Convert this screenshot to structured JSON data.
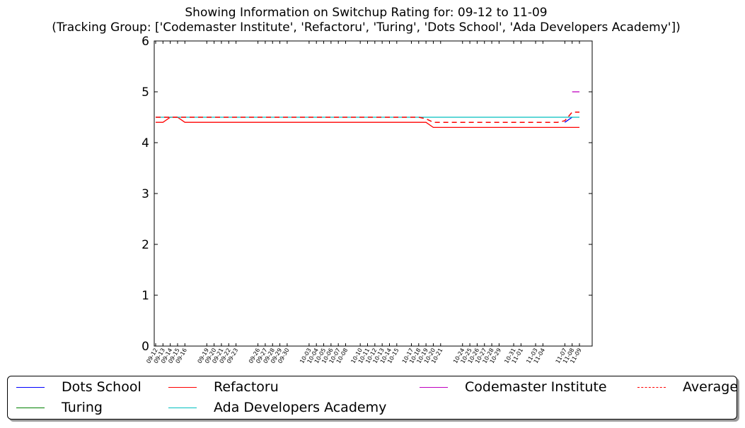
{
  "title": {
    "line1": "Showing Information on Switchup Rating for: 09-12 to 11-09",
    "line2": "(Tracking Group: ['Codemaster Institute', 'Refactoru', 'Turing', 'Dots School', 'Ada Developers Academy'])"
  },
  "chart_data": {
    "type": "line",
    "title": "Showing Information on Switchup Rating for: 09-12 to 11-09",
    "subtitle": "(Tracking Group: ['Codemaster Institute', 'Refactoru', 'Turing', 'Dots School', 'Ada Developers Academy'])",
    "xlabel": "",
    "ylabel": "",
    "ylim": [
      0,
      6
    ],
    "yticks": [
      0,
      1,
      2,
      3,
      4,
      5,
      6
    ],
    "xlim": [
      0,
      58
    ],
    "grid": false,
    "legend_position": "bottom",
    "xticks": [
      {
        "x": 0,
        "label": "09-12"
      },
      {
        "x": 1,
        "label": "09-13"
      },
      {
        "x": 2,
        "label": "09-14"
      },
      {
        "x": 3,
        "label": "09-15"
      },
      {
        "x": 4,
        "label": "09-16"
      },
      {
        "x": 7,
        "label": "09-19"
      },
      {
        "x": 8,
        "label": "09-20"
      },
      {
        "x": 9,
        "label": "09-21"
      },
      {
        "x": 10,
        "label": "09-22"
      },
      {
        "x": 11,
        "label": "09-23"
      },
      {
        "x": 14,
        "label": "09-26"
      },
      {
        "x": 15,
        "label": "09-27"
      },
      {
        "x": 16,
        "label": "09-28"
      },
      {
        "x": 17,
        "label": "09-29"
      },
      {
        "x": 18,
        "label": "09-30"
      },
      {
        "x": 21,
        "label": "10-03"
      },
      {
        "x": 22,
        "label": "10-04"
      },
      {
        "x": 23,
        "label": "10-05"
      },
      {
        "x": 24,
        "label": "10-06"
      },
      {
        "x": 25,
        "label": "10-07"
      },
      {
        "x": 26,
        "label": "10-08"
      },
      {
        "x": 28,
        "label": "10-10"
      },
      {
        "x": 29,
        "label": "10-11"
      },
      {
        "x": 30,
        "label": "10-12"
      },
      {
        "x": 31,
        "label": "10-13"
      },
      {
        "x": 32,
        "label": "10-14"
      },
      {
        "x": 33,
        "label": "10-15"
      },
      {
        "x": 35,
        "label": "10-17"
      },
      {
        "x": 36,
        "label": "10-18"
      },
      {
        "x": 37,
        "label": "10-19"
      },
      {
        "x": 38,
        "label": "10-20"
      },
      {
        "x": 39,
        "label": "10-21"
      },
      {
        "x": 42,
        "label": "10-24"
      },
      {
        "x": 43,
        "label": "10-25"
      },
      {
        "x": 44,
        "label": "10-26"
      },
      {
        "x": 45,
        "label": "10-27"
      },
      {
        "x": 46,
        "label": "10-28"
      },
      {
        "x": 47,
        "label": "10-29"
      },
      {
        "x": 49,
        "label": "10-31"
      },
      {
        "x": 50,
        "label": "11-01"
      },
      {
        "x": 52,
        "label": "11-03"
      },
      {
        "x": 53,
        "label": "11-04"
      },
      {
        "x": 56,
        "label": "11-07"
      },
      {
        "x": 57,
        "label": "11-08"
      },
      {
        "x": 58,
        "label": "11-09"
      }
    ],
    "series": [
      {
        "name": "Dots School",
        "color": "#0000ff",
        "style": "solid",
        "points": [
          [
            56,
            4.4
          ],
          [
            57,
            4.5
          ]
        ]
      },
      {
        "name": "Turing",
        "color": "#008000",
        "style": "solid",
        "points": []
      },
      {
        "name": "Refactoru",
        "color": "#ff0000",
        "style": "solid",
        "points": [
          [
            0,
            4.4
          ],
          [
            1,
            4.4
          ],
          [
            2,
            4.5
          ],
          [
            3,
            4.5
          ],
          [
            4,
            4.4
          ],
          [
            36,
            4.4
          ],
          [
            37,
            4.4
          ],
          [
            38,
            4.3
          ],
          [
            58,
            4.3
          ]
        ]
      },
      {
        "name": "Ada Developers Academy",
        "color": "#00bfbf",
        "style": "solid",
        "points": [
          [
            0,
            4.5
          ],
          [
            1,
            4.5
          ],
          [
            2,
            4.5
          ],
          [
            3,
            4.5
          ],
          [
            4,
            4.5
          ],
          [
            58,
            4.5
          ]
        ]
      },
      {
        "name": "Codemaster Institute",
        "color": "#bf00bf",
        "style": "solid",
        "points": [
          [
            57,
            5.0
          ],
          [
            58,
            5.0
          ]
        ]
      },
      {
        "name": "Average",
        "color": "#ff0000",
        "style": "dashed",
        "points": [
          [
            0,
            4.5
          ],
          [
            36,
            4.5
          ],
          [
            37,
            4.47
          ],
          [
            38,
            4.4
          ],
          [
            55,
            4.4
          ],
          [
            56,
            4.43
          ],
          [
            57,
            4.6
          ],
          [
            58,
            4.6
          ]
        ]
      }
    ]
  },
  "legend": {
    "items": [
      {
        "label": "Dots School",
        "color": "#0000ff",
        "style": "solid"
      },
      {
        "label": "Turing",
        "color": "#008000",
        "style": "solid"
      },
      {
        "label": "Refactoru",
        "color": "#ff0000",
        "style": "solid"
      },
      {
        "label": "Ada Developers Academy",
        "color": "#00bfbf",
        "style": "solid"
      },
      {
        "label": "Codemaster Institute",
        "color": "#bf00bf",
        "style": "solid"
      },
      {
        "label": "Average",
        "color": "#ff0000",
        "style": "dashed"
      }
    ]
  }
}
